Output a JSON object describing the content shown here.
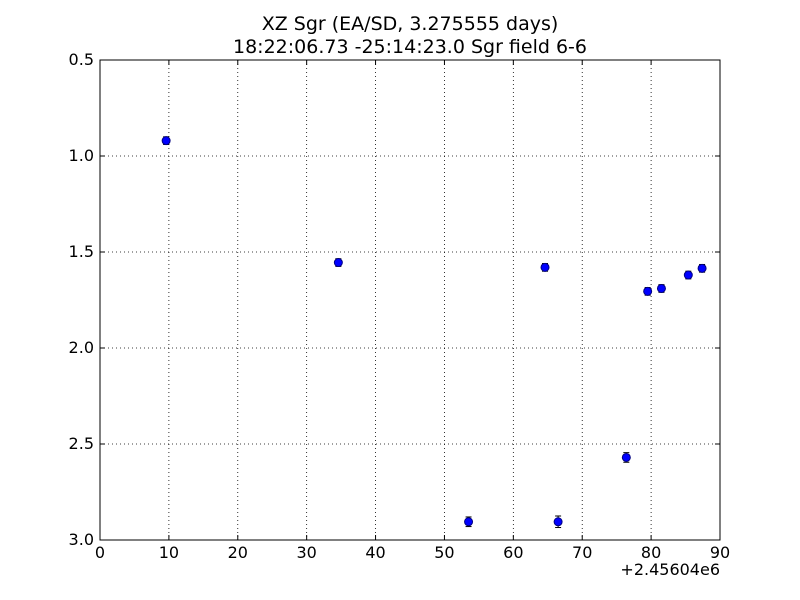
{
  "chart_data": {
    "type": "scatter",
    "title": "XZ Sgr (EA/SD, 3.275555 days)",
    "subtitle": "18:22:06.73 -25:14:23.0 Sgr field 6-6",
    "xlabel": "",
    "ylabel": "",
    "x_offset_label": "+2.45604e6",
    "xlim": [
      0,
      90
    ],
    "ylim": [
      0.5,
      3.0
    ],
    "y_inverted": true,
    "grid": true,
    "x_ticks": [
      0,
      10,
      20,
      30,
      40,
      50,
      60,
      70,
      80,
      90
    ],
    "x_tick_labels": [
      "0",
      "10",
      "20",
      "30",
      "40",
      "50",
      "60",
      "70",
      "80",
      "90"
    ],
    "y_ticks": [
      0.5,
      1.0,
      1.5,
      2.0,
      2.5,
      3.0
    ],
    "y_tick_labels": [
      "0.5",
      "1.0",
      "1.5",
      "2.0",
      "2.5",
      "3.0"
    ],
    "marker_color": "#0000ff",
    "marker_edge_color": "#000080",
    "points": [
      {
        "x": 9.6,
        "y": 0.92,
        "yerr": 0.02
      },
      {
        "x": 34.6,
        "y": 1.555,
        "yerr": 0.02
      },
      {
        "x": 53.5,
        "y": 2.905,
        "yerr": 0.025
      },
      {
        "x": 64.6,
        "y": 1.58,
        "yerr": 0.02
      },
      {
        "x": 66.5,
        "y": 2.905,
        "yerr": 0.03
      },
      {
        "x": 76.4,
        "y": 2.57,
        "yerr": 0.025
      },
      {
        "x": 79.5,
        "y": 1.705,
        "yerr": 0.02
      },
      {
        "x": 81.5,
        "y": 1.69,
        "yerr": 0.02
      },
      {
        "x": 85.4,
        "y": 1.62,
        "yerr": 0.02
      },
      {
        "x": 87.4,
        "y": 1.585,
        "yerr": 0.02
      }
    ]
  }
}
